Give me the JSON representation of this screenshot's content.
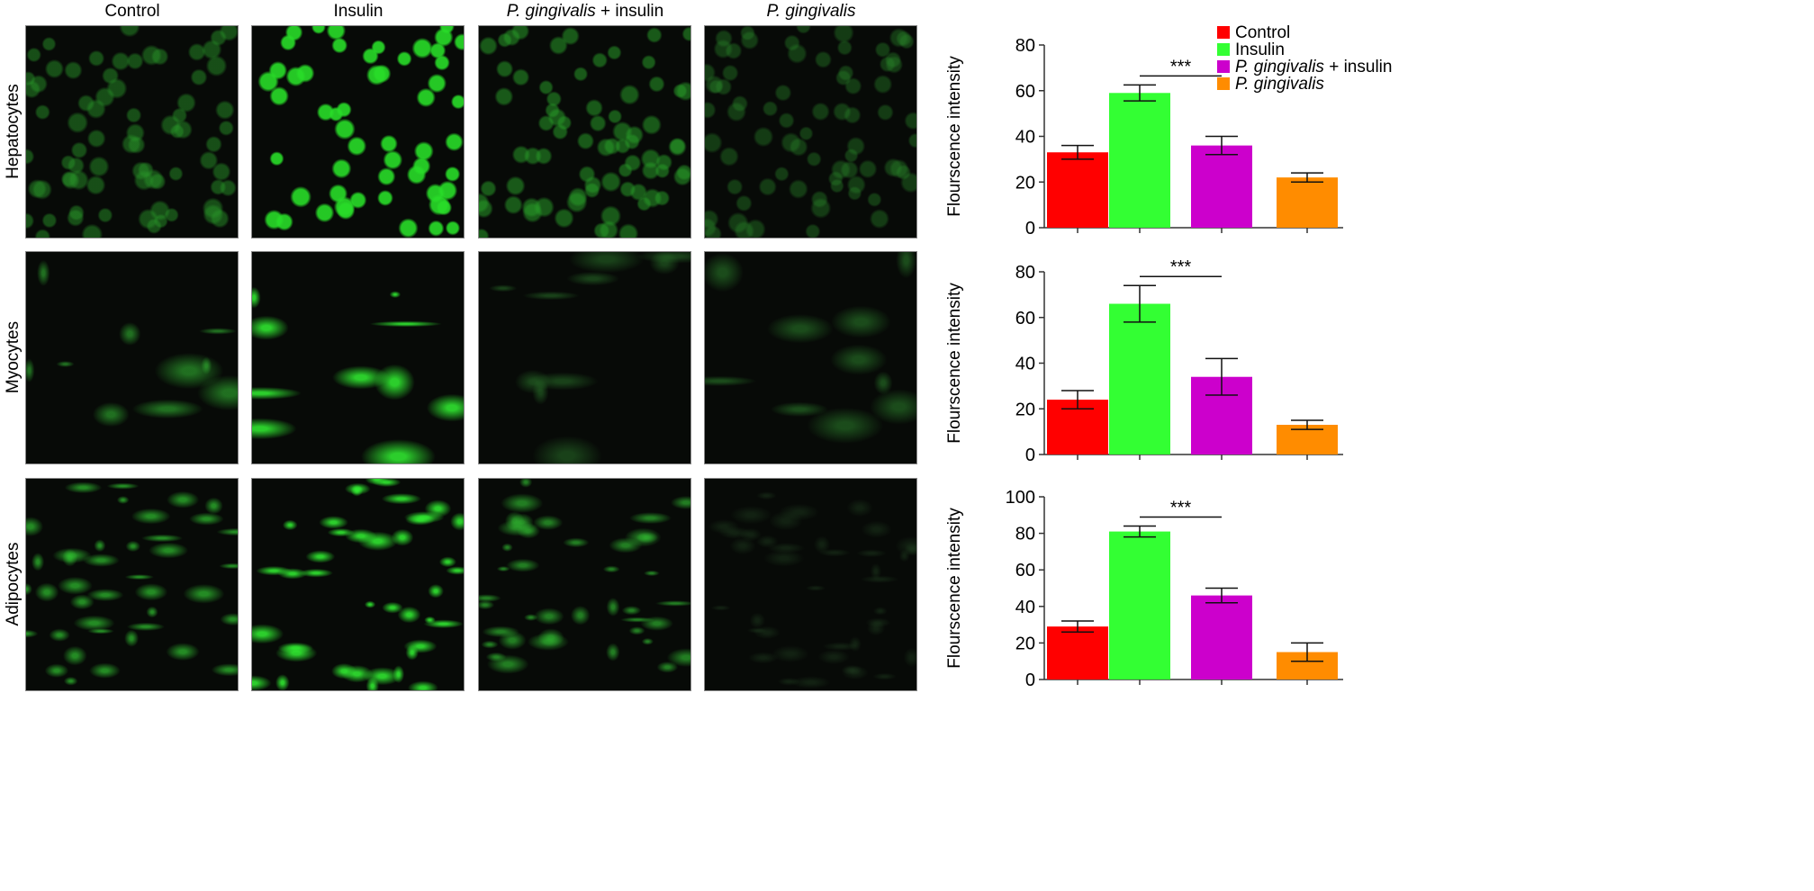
{
  "columns": [
    {
      "label_italic": "",
      "label": "Control"
    },
    {
      "label_italic": "",
      "label": "Insulin"
    },
    {
      "label_italic": "P. gingivalis",
      "label": " + insulin"
    },
    {
      "label_italic": "P. gingivalis",
      "label": ""
    }
  ],
  "rows": [
    "Hepatocytes",
    "Myocytes",
    "Adipocytes"
  ],
  "colors": {
    "Control": "#ff0000",
    "Insulin": "#33ff33",
    "P. gingivalis + insulin": "#cc00cc",
    "P. gingivalis": "#ff8c00",
    "fluorescence": "#22dd22"
  },
  "chart_data": [
    {
      "type": "bar",
      "title": "",
      "row": "Hepatocytes",
      "ylabel": "Flourscence intensity",
      "ylim": [
        0,
        80
      ],
      "yticks": [
        0,
        20,
        40,
        60,
        80
      ],
      "categories": [
        "Control",
        "Insulin",
        "P. gingivalis + insulin",
        "P. gingivalis"
      ],
      "values": [
        33,
        59,
        36,
        22
      ],
      "errors": [
        3,
        3.5,
        4,
        2
      ],
      "significance": {
        "from": 1,
        "to": 2,
        "label": "***"
      },
      "legend": {
        "position": "top-right",
        "entries": [
          {
            "italic": "",
            "text": "Control"
          },
          {
            "italic": "",
            "text": "Insulin"
          },
          {
            "italic": "P. gingivalis",
            "text": " + insulin"
          },
          {
            "italic": "P. gingivalis",
            "text": ""
          }
        ]
      }
    },
    {
      "type": "bar",
      "title": "",
      "row": "Myocytes",
      "ylabel": "Flourscence intensity",
      "ylim": [
        0,
        80
      ],
      "yticks": [
        0,
        20,
        40,
        60,
        80
      ],
      "categories": [
        "Control",
        "Insulin",
        "P. gingivalis + insulin",
        "P. gingivalis"
      ],
      "values": [
        24,
        66,
        34,
        13
      ],
      "errors": [
        4,
        8,
        8,
        2
      ],
      "significance": {
        "from": 1,
        "to": 2,
        "label": "***"
      }
    },
    {
      "type": "bar",
      "title": "",
      "row": "Adipocytes",
      "ylabel": "Flourscence intensity",
      "ylim": [
        0,
        100
      ],
      "yticks": [
        0,
        20,
        40,
        60,
        80,
        100
      ],
      "categories": [
        "Control",
        "Insulin",
        "P. gingivalis + insulin",
        "P. gingivalis"
      ],
      "values": [
        29,
        81,
        46,
        15
      ],
      "errors": [
        3,
        3,
        4,
        5
      ],
      "significance": {
        "from": 1,
        "to": 2,
        "label": "***"
      }
    }
  ]
}
